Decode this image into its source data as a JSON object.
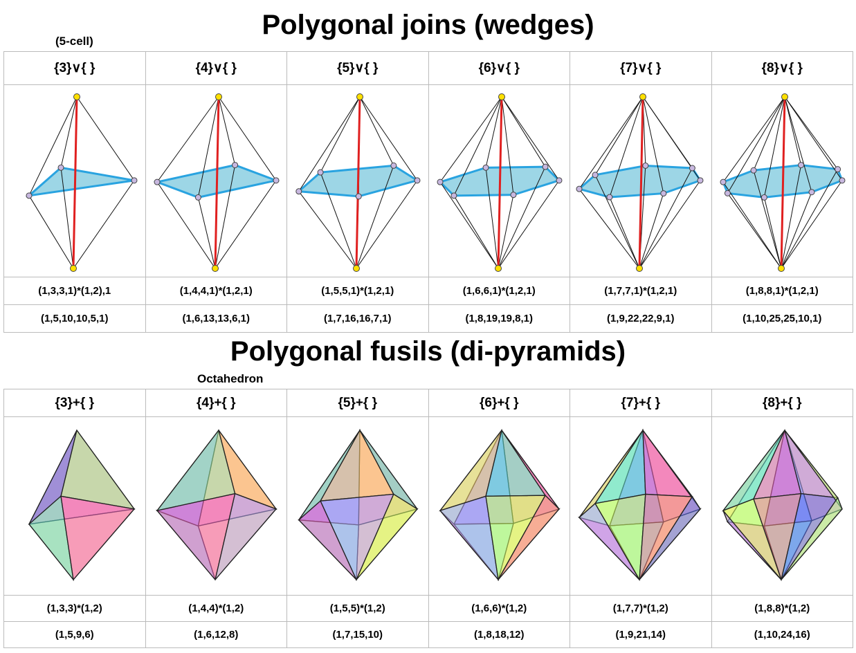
{
  "sections": [
    {
      "title": "Polygonal joins (wedges)",
      "note": "(5-cell)",
      "headers": [
        "{3}∨{ }",
        "{4}∨{ }",
        "{5}∨{ }",
        "{6}∨{ }",
        "{7}∨{ }",
        "{8}∨{ }"
      ],
      "rows": [
        [
          "(1,3,3,1)*(1,2),1",
          "(1,4,4,1)*(1,2,1)",
          "(1,5,5,1)*(1,2,1)",
          "(1,6,6,1)*(1,2,1)",
          "(1,7,7,1)*(1,2,1)",
          "(1,8,8,1)*(1,2,1)"
        ],
        [
          "(1,5,10,10,5,1)",
          "(1,6,13,13,6,1)",
          "(1,7,16,16,7,1)",
          "(1,8,19,19,8,1)",
          "(1,9,22,22,9,1)",
          "(1,10,25,25,10,1)"
        ]
      ]
    },
    {
      "title": "Polygonal fusils (di-pyramids)",
      "note": "Octahedron",
      "headers": [
        "{3}+{ }",
        "{4}+{ }",
        "{5}+{ }",
        "{6}+{ }",
        "{7}+{ }",
        "{8}+{ }"
      ],
      "rows": [
        [
          "(1,3,3)*(1,2)",
          "(1,4,4)*(1,2)",
          "(1,5,5)*(1,2)",
          "(1,6,6)*(1,2)",
          "(1,7,7)*(1,2)",
          "(1,8,8)*(1,2)"
        ],
        [
          "(1,5,9,6)",
          "(1,6,12,8)",
          "(1,7,15,10)",
          "(1,8,18,12)",
          "(1,9,21,14)",
          "(1,10,24,16)"
        ]
      ]
    }
  ]
}
